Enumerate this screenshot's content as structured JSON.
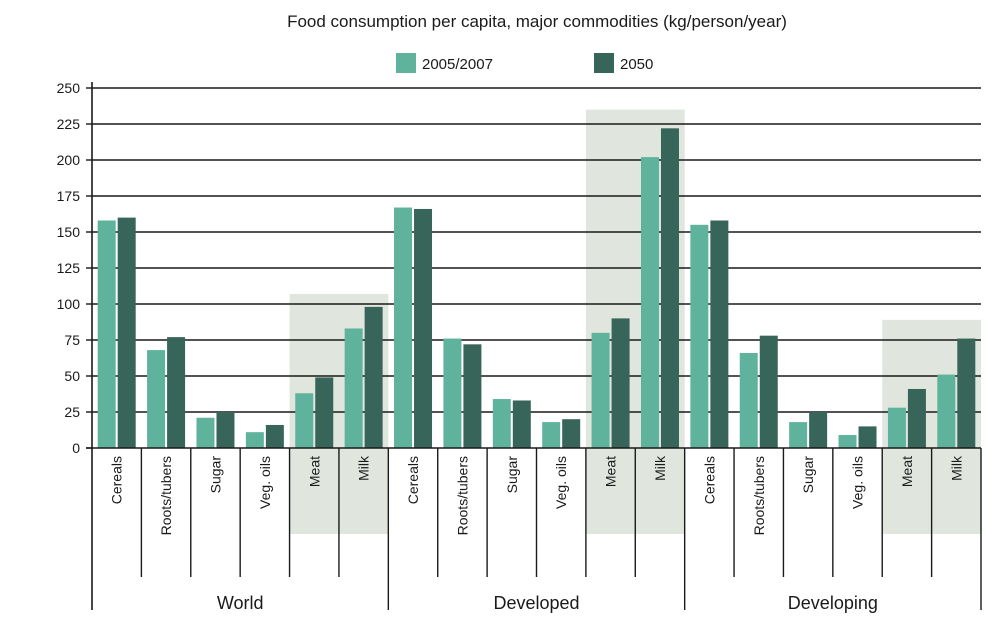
{
  "chart_data": {
    "type": "bar",
    "title": "Food consumption per capita, major commodities (kg/person/year)",
    "xlabel": "",
    "ylabel": "",
    "ylim": [
      0,
      250
    ],
    "yticks": [
      0,
      25,
      50,
      75,
      100,
      125,
      150,
      175,
      200,
      225,
      250
    ],
    "grid": true,
    "legend_position": "top",
    "colors": {
      "series1": "#5fb39c",
      "series2": "#376559",
      "highlight": "#e0e6de",
      "axis": "#1a1a1a"
    },
    "groups": [
      {
        "name": "World",
        "categories": [
          "Cereals",
          "Roots/tubers",
          "Sugar",
          "Veg. oils",
          "Meat",
          "Milk"
        ]
      },
      {
        "name": "Developed",
        "categories": [
          "Cereals",
          "Roots/tubers",
          "Sugar",
          "Veg. oils",
          "Meat",
          "Milk"
        ]
      },
      {
        "name": "Developing",
        "categories": [
          "Cereals",
          "Roots/tubers",
          "Sugar",
          "Veg. oils",
          "Meat",
          "Milk"
        ]
      }
    ],
    "series": [
      {
        "name": "2005/2007",
        "values": [
          158,
          68,
          21,
          11,
          38,
          83,
          167,
          76,
          34,
          18,
          80,
          202,
          155,
          66,
          18,
          9,
          28,
          51
        ]
      },
      {
        "name": "2050",
        "values": [
          160,
          77,
          25,
          16,
          49,
          98,
          166,
          72,
          33,
          20,
          90,
          222,
          158,
          78,
          25,
          15,
          41,
          76
        ]
      }
    ],
    "highlight_bands": [
      {
        "group": "World",
        "categories": [
          "Meat",
          "Milk"
        ],
        "top_value": 107
      },
      {
        "group": "Developed",
        "categories": [
          "Meat",
          "Milk"
        ],
        "top_value": 235
      },
      {
        "group": "Developing",
        "categories": [
          "Meat",
          "Milk"
        ],
        "top_value": 89
      }
    ]
  }
}
